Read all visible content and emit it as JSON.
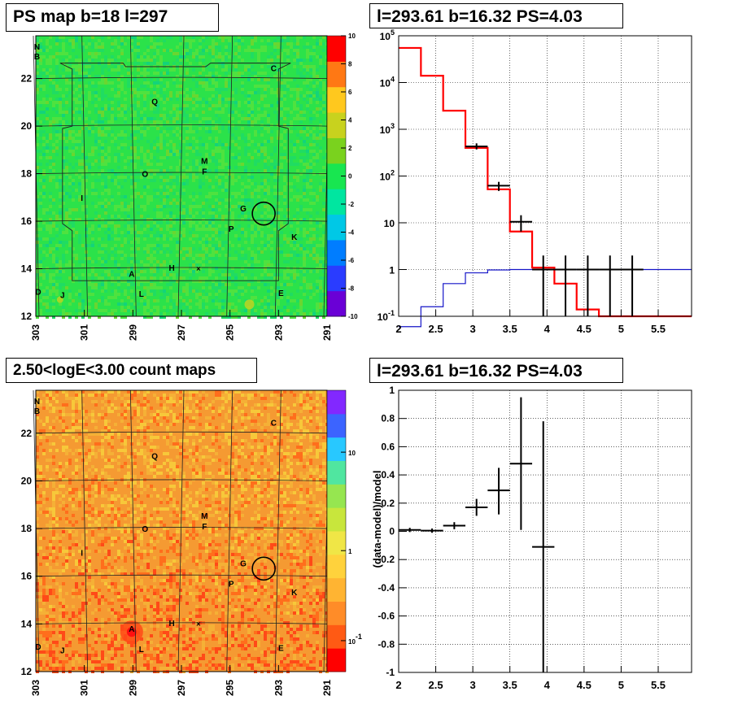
{
  "panels": {
    "top_left_title": "PS map b=18 l=297",
    "top_right_title": "l=293.61 b=16.32 PS=4.03",
    "bottom_left_title": "2.50<logE<3.00 count maps",
    "bottom_right_title": "l=293.61 b=16.32 PS=4.03"
  },
  "chart_data": [
    {
      "type": "heatmap",
      "title": "PS map b=18 l=297",
      "x_ticks": [
        "303",
        "301",
        "299",
        "297",
        "295",
        "293",
        "291"
      ],
      "y_ticks": [
        "12",
        "14",
        "16",
        "18",
        "20",
        "22"
      ],
      "xlim": [
        303,
        291
      ],
      "ylim": [
        12,
        23.8
      ],
      "colorbar": {
        "min": -10,
        "max": 10,
        "ticks": [
          "10",
          "8",
          "6",
          "4",
          "2",
          "0",
          "-2",
          "-4",
          "-6",
          "-8",
          "-10"
        ],
        "colors": [
          "#6a00d6",
          "#2a3cff",
          "#007dff",
          "#00c8e6",
          "#00e6a0",
          "#18e650",
          "#7ad21e",
          "#c8d21e",
          "#ffc81e",
          "#ff7814",
          "#ff0000"
        ]
      },
      "background_color": "#2be24a",
      "labels": [
        {
          "text": "N",
          "l": 302.95,
          "b": 23.35
        },
        {
          "text": "B",
          "l": 302.95,
          "b": 22.95
        },
        {
          "text": "C",
          "l": 293.2,
          "b": 22.45
        },
        {
          "text": "Q",
          "l": 298.1,
          "b": 21.05
        },
        {
          "text": "M",
          "l": 296.05,
          "b": 18.55
        },
        {
          "text": "F",
          "l": 296.05,
          "b": 18.1
        },
        {
          "text": "O",
          "l": 298.5,
          "b": 18.0
        },
        {
          "text": "I",
          "l": 301.1,
          "b": 17.0
        },
        {
          "text": "G",
          "l": 294.45,
          "b": 16.55
        },
        {
          "text": "P",
          "l": 294.95,
          "b": 15.7
        },
        {
          "text": "K",
          "l": 292.35,
          "b": 15.35
        },
        {
          "text": "H",
          "l": 297.4,
          "b": 14.05
        },
        {
          "text": "A",
          "l": 299.05,
          "b": 13.8
        },
        {
          "text": "E",
          "l": 292.9,
          "b": 13.0
        },
        {
          "text": "L",
          "l": 298.65,
          "b": 12.95
        },
        {
          "text": "D",
          "l": 302.9,
          "b": 13.05
        },
        {
          "text": "J",
          "l": 301.9,
          "b": 12.9
        }
      ],
      "circle": {
        "l": 293.61,
        "b": 16.32
      },
      "cross_marker": {
        "l": 296.3,
        "b": 14.0
      }
    },
    {
      "type": "line",
      "title": "l=293.61 b=16.32 PS=4.03",
      "xlim": [
        2,
        5.95
      ],
      "ylim": [
        0.1,
        100000
      ],
      "log_y": true,
      "grid": true,
      "x_ticks": [
        "2",
        "2.5",
        "3",
        "3.5",
        "4",
        "4.5",
        "5",
        "5.5"
      ],
      "y_ticks": [
        "10^-1",
        "1",
        "10",
        "10^2",
        "10^3",
        "10^4",
        "10^5"
      ],
      "series": [
        {
          "name": "",
          "color": "#ff0000",
          "style": "step",
          "bin_edges": [
            2.0,
            2.3,
            2.6,
            2.9,
            3.2,
            3.5,
            3.8,
            4.1,
            4.4,
            4.7,
            5.0,
            5.3,
            5.6,
            5.95
          ],
          "values": [
            55000,
            14000,
            2500,
            400,
            52,
            6.5,
            1.1,
            0.5,
            0.14,
            0.1,
            0.1,
            0.1,
            0.1
          ]
        },
        {
          "name": "",
          "color": "#1515c8",
          "style": "step",
          "bin_edges": [
            2.0,
            2.3,
            2.6,
            2.9,
            3.2,
            3.5,
            3.8,
            4.1,
            4.4,
            4.7,
            5.0,
            5.3,
            5.6,
            5.95
          ],
          "values": [
            0.06,
            0.16,
            0.5,
            0.85,
            0.98,
            1.0,
            1.0,
            1.0,
            1.0,
            1.0,
            1.0,
            1.0,
            1.0
          ]
        },
        {
          "name": "",
          "color": "#000000",
          "style": "errorbar",
          "x": [
            3.05,
            3.35,
            3.65,
            3.95,
            4.25,
            4.55,
            4.85,
            5.15
          ],
          "xerr": 0.15,
          "y": [
            430,
            62,
            10.5,
            1.0,
            1.0,
            1.0,
            1.0,
            1.0
          ],
          "y_low": [
            370,
            48,
            6.5,
            0.1,
            0.1,
            0.1,
            0.1,
            0.1
          ],
          "y_high": [
            500,
            75,
            14.5,
            2.0,
            2.0,
            2.0,
            2.0,
            2.0
          ]
        }
      ]
    },
    {
      "type": "heatmap",
      "title": "2.50<logE<3.00 count maps",
      "x_ticks": [
        "303",
        "301",
        "299",
        "297",
        "295",
        "293",
        "291"
      ],
      "y_ticks": [
        "12",
        "14",
        "16",
        "18",
        "20",
        "22"
      ],
      "xlim": [
        303,
        291
      ],
      "ylim": [
        12,
        23.8
      ],
      "colorbar": {
        "log": true,
        "ticks": [
          "10",
          "1",
          "10^-1"
        ],
        "colors": [
          "#ff0000",
          "#ff5a14",
          "#ff8c28",
          "#ffb432",
          "#ffd23c",
          "#f0e646",
          "#c8e63c",
          "#96e650",
          "#50e6a0",
          "#28c8ff",
          "#3c64ff",
          "#8228ff"
        ]
      },
      "background_color": "#f59a32",
      "labels": [
        {
          "text": "N",
          "l": 302.95,
          "b": 23.35
        },
        {
          "text": "B",
          "l": 302.95,
          "b": 22.95
        },
        {
          "text": "C",
          "l": 293.2,
          "b": 22.45
        },
        {
          "text": "Q",
          "l": 298.1,
          "b": 21.05
        },
        {
          "text": "M",
          "l": 296.05,
          "b": 18.55
        },
        {
          "text": "F",
          "l": 296.05,
          "b": 18.1
        },
        {
          "text": "O",
          "l": 298.5,
          "b": 18.0
        },
        {
          "text": "I",
          "l": 301.1,
          "b": 17.0
        },
        {
          "text": "G",
          "l": 294.45,
          "b": 16.55
        },
        {
          "text": "P",
          "l": 294.95,
          "b": 15.7
        },
        {
          "text": "K",
          "l": 292.35,
          "b": 15.35
        },
        {
          "text": "H",
          "l": 297.4,
          "b": 14.05
        },
        {
          "text": "A",
          "l": 299.05,
          "b": 13.8
        },
        {
          "text": "E",
          "l": 292.9,
          "b": 13.0
        },
        {
          "text": "L",
          "l": 298.65,
          "b": 12.95
        },
        {
          "text": "D",
          "l": 302.9,
          "b": 13.05
        },
        {
          "text": "J",
          "l": 301.9,
          "b": 12.9
        }
      ],
      "circle": {
        "l": 293.61,
        "b": 16.32
      },
      "cross_marker": {
        "l": 296.3,
        "b": 14.0
      }
    },
    {
      "type": "scatter",
      "title": "l=293.61 b=16.32 PS=4.03",
      "ylabel": "(data-model)/model",
      "xlim": [
        2,
        5.95
      ],
      "ylim": [
        -1,
        1
      ],
      "grid": true,
      "x_ticks": [
        "2",
        "2.5",
        "3",
        "3.5",
        "4",
        "4.5",
        "5",
        "5.5"
      ],
      "y_ticks": [
        "-1",
        "-0.8",
        "-0.6",
        "-0.4",
        "-0.2",
        "0",
        "0.2",
        "0.4",
        "0.6",
        "0.8",
        "1"
      ],
      "series": [
        {
          "name": "",
          "color": "#000000",
          "style": "errorbar",
          "x": [
            2.15,
            2.45,
            2.75,
            3.05,
            3.35,
            3.65,
            3.95
          ],
          "xerr": 0.15,
          "y": [
            0.01,
            0.005,
            0.04,
            0.17,
            0.29,
            0.48,
            -0.11
          ],
          "y_low": [
            -0.005,
            -0.01,
            0.015,
            0.11,
            0.12,
            0.01,
            -1.0
          ],
          "y_high": [
            0.025,
            0.02,
            0.065,
            0.23,
            0.45,
            0.95,
            0.78
          ]
        }
      ]
    }
  ]
}
